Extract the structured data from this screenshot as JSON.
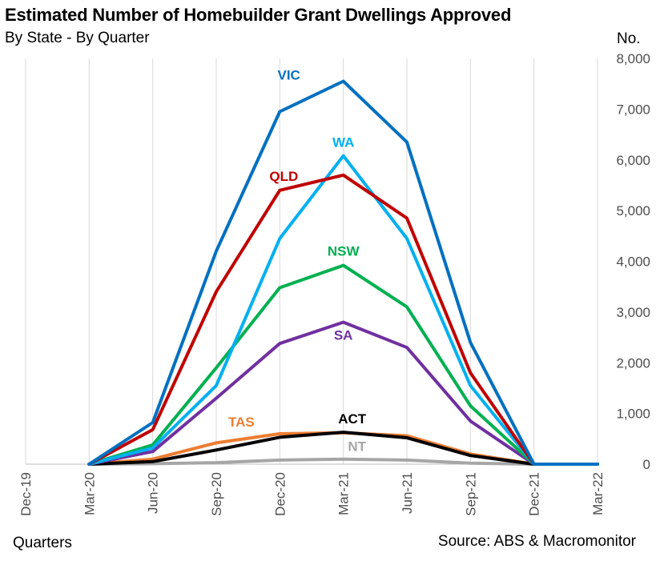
{
  "header": {
    "title": "Estimated Number of Homebuilder Grant Dwellings Approved",
    "subtitle": "By State - By Quarter",
    "y_unit": "No."
  },
  "footer": {
    "x_axis_label": "Quarters",
    "source": "Source: ABS & Macromonitor"
  },
  "chart_data": {
    "type": "line",
    "title": "Estimated Number of Homebuilder Grant Dwellings Approved",
    "subtitle": "By State - By Quarter",
    "xlabel": "Quarters",
    "ylabel": "No.",
    "x": [
      "Dec-19",
      "Mar-20",
      "Jun-20",
      "Sep-20",
      "Dec-20",
      "Mar-21",
      "Jun-21",
      "Sep-21",
      "Dec-21",
      "Mar-22"
    ],
    "ylim": [
      0,
      8000
    ],
    "yticks": [
      0,
      1000,
      2000,
      3000,
      4000,
      5000,
      6000,
      7000,
      8000
    ],
    "ytick_labels": [
      "0",
      "1,000",
      "2,000",
      "3,000",
      "4,000",
      "5,000",
      "6,000",
      "7,000",
      "8,000"
    ],
    "y_axis_side": "right",
    "grid": "vertical",
    "legend": "none (direct labels)",
    "series": [
      {
        "name": "VIC",
        "color": "#0070C0",
        "values": [
          null,
          0,
          820,
          4200,
          6950,
          7550,
          6350,
          2400,
          0,
          0
        ]
      },
      {
        "name": "QLD",
        "color": "#C00000",
        "values": [
          null,
          0,
          680,
          3400,
          5400,
          5700,
          4850,
          1800,
          0,
          0
        ]
      },
      {
        "name": "WA",
        "color": "#00B0F0",
        "values": [
          null,
          0,
          320,
          1550,
          4450,
          6080,
          4450,
          1550,
          0,
          0
        ]
      },
      {
        "name": "NSW",
        "color": "#00B050",
        "values": [
          null,
          0,
          380,
          1900,
          3480,
          3920,
          3100,
          1150,
          0,
          0
        ]
      },
      {
        "name": "SA",
        "color": "#7030A0",
        "values": [
          null,
          0,
          250,
          1300,
          2380,
          2800,
          2300,
          850,
          0,
          0
        ]
      },
      {
        "name": "TAS",
        "color": "#ED7D31",
        "values": [
          null,
          0,
          100,
          420,
          600,
          620,
          560,
          200,
          0,
          0
        ]
      },
      {
        "name": "ACT",
        "color": "#000000",
        "values": [
          null,
          0,
          50,
          280,
          530,
          630,
          520,
          170,
          0,
          0
        ]
      },
      {
        "name": "NT",
        "color": "#A6A6A6",
        "values": [
          null,
          0,
          10,
          30,
          80,
          100,
          80,
          20,
          0,
          0
        ]
      }
    ]
  }
}
